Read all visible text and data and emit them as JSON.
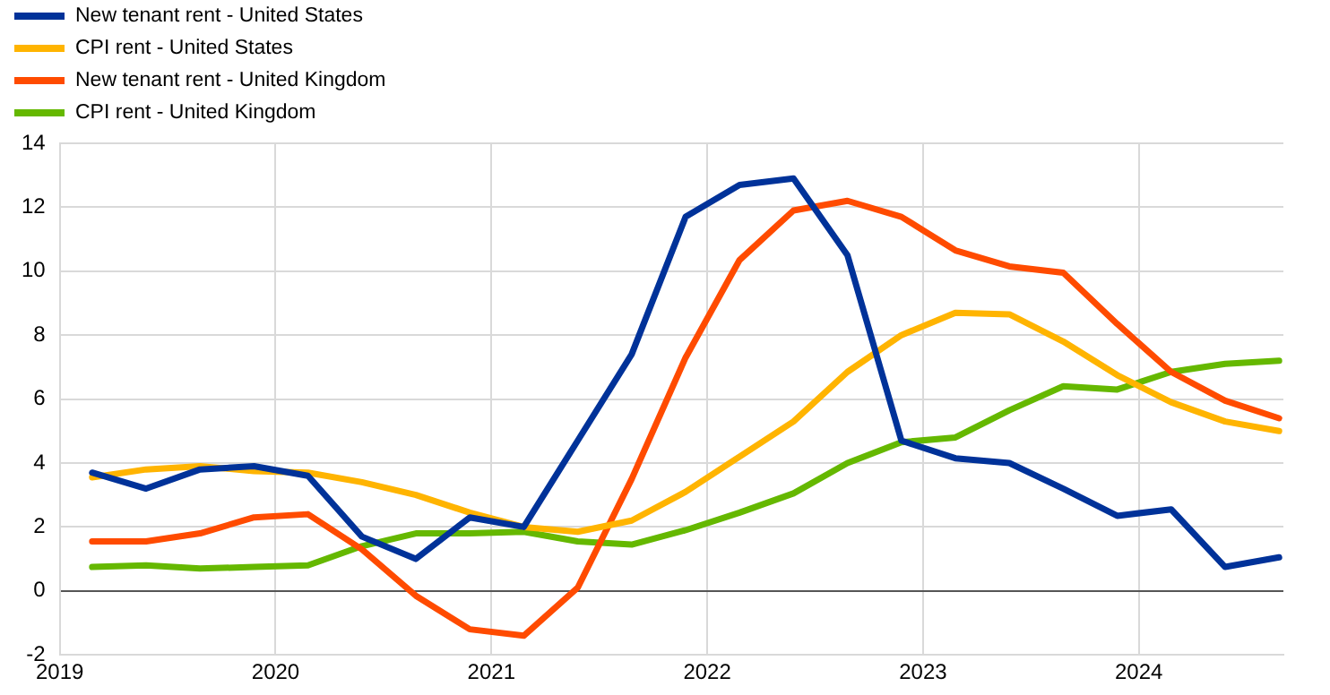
{
  "chart_data": {
    "type": "line",
    "x": [
      2019.15,
      2019.4,
      2019.65,
      2019.9,
      2020.15,
      2020.4,
      2020.65,
      2020.9,
      2021.15,
      2021.4,
      2021.65,
      2021.9,
      2022.15,
      2022.4,
      2022.65,
      2022.9,
      2023.15,
      2023.4,
      2023.65,
      2023.9,
      2024.15,
      2024.4,
      2024.65
    ],
    "series": [
      {
        "name": "New tenant rent - United States",
        "color": "#003299",
        "values": [
          3.7,
          3.2,
          3.8,
          3.9,
          3.6,
          1.7,
          1.0,
          2.3,
          2.0,
          4.7,
          7.4,
          11.7,
          12.7,
          12.9,
          10.5,
          4.7,
          4.15,
          4.0,
          3.2,
          2.35,
          2.55,
          0.75,
          1.05
        ]
      },
      {
        "name": "CPI rent - United States",
        "color": "#ffb400",
        "values": [
          3.55,
          3.8,
          3.9,
          3.75,
          3.7,
          3.4,
          3.0,
          2.45,
          2.0,
          1.85,
          2.2,
          3.1,
          4.2,
          5.3,
          6.85,
          8.0,
          8.7,
          8.65,
          7.8,
          6.75,
          5.9,
          5.3,
          5.0
        ]
      },
      {
        "name": "New tenant rent - United Kingdom",
        "color": "#ff4b00",
        "values": [
          1.55,
          1.55,
          1.8,
          2.3,
          2.4,
          1.3,
          -0.15,
          -1.2,
          -1.4,
          0.1,
          3.5,
          7.3,
          10.35,
          11.9,
          12.2,
          11.7,
          10.65,
          10.15,
          9.95,
          8.35,
          6.85,
          5.95,
          5.4
        ]
      },
      {
        "name": "CPI rent - United Kingdom",
        "color": "#65b800",
        "values": [
          0.75,
          0.8,
          0.7,
          0.75,
          0.8,
          1.4,
          1.8,
          1.8,
          1.85,
          1.55,
          1.45,
          1.9,
          2.45,
          3.05,
          4.0,
          4.65,
          4.8,
          5.65,
          6.4,
          6.3,
          6.85,
          7.1,
          7.2
        ]
      }
    ],
    "xlim": [
      2019,
      2024.67
    ],
    "xticks": [
      2019,
      2020,
      2021,
      2022,
      2023,
      2024
    ],
    "ylim": [
      -2,
      14
    ],
    "yticks": [
      -2,
      0,
      2,
      4,
      6,
      8,
      10,
      12,
      14
    ],
    "grid": true,
    "legend": "top left",
    "marker": "none",
    "line_style": "solid"
  }
}
